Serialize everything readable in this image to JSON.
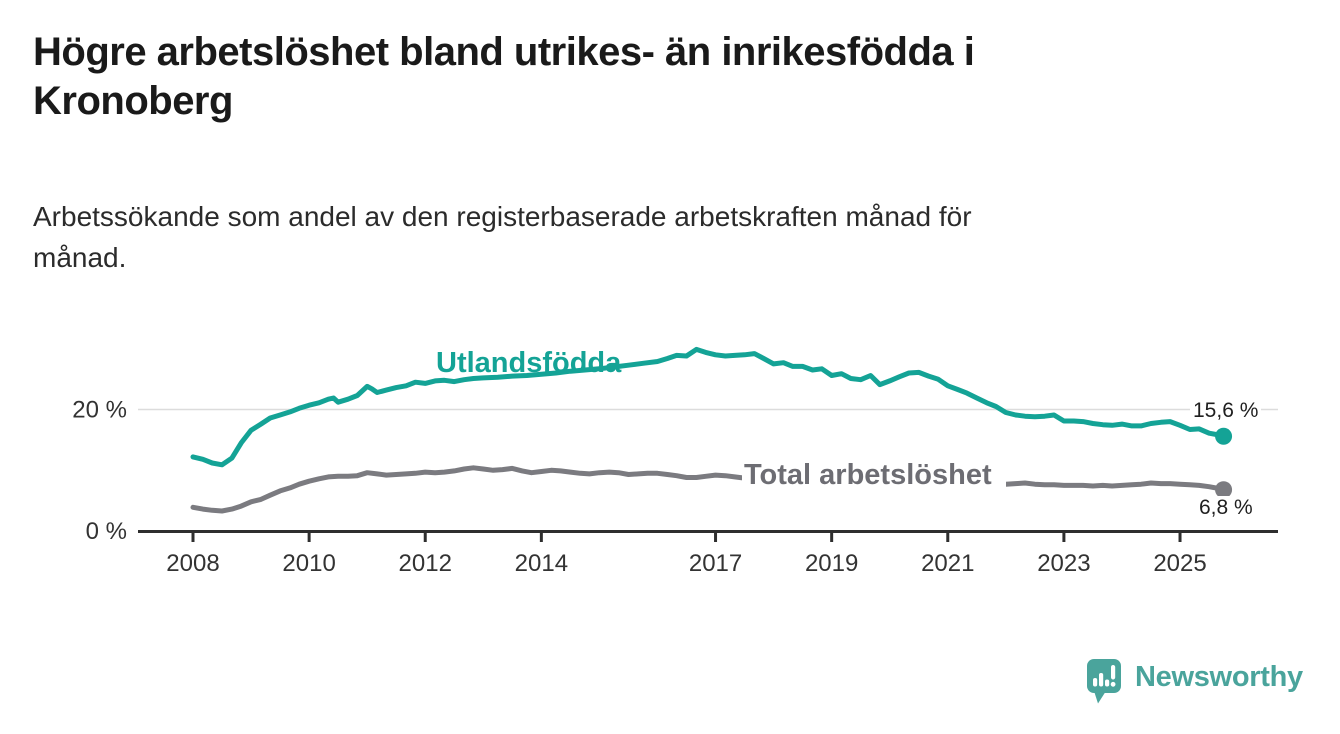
{
  "header": {
    "title": "Högre arbetslöshet bland utrikes- än inrikesfödda i Kronoberg",
    "title_lines": [
      "Högre arbetslöshet bland utrikes- än inrikesfödda i",
      "Kronoberg"
    ],
    "subtitle": "Arbetssökande som andel av den registerbaserade arbetskraften månad för månad.",
    "subtitle_lines": [
      "Arbetssökande som andel av den registerbaserade arbetskraften månad för",
      "månad."
    ]
  },
  "chart_data": {
    "type": "line",
    "title": "Högre arbetslöshet bland utrikes- än inrikesfödda i Kronoberg",
    "subtitle": "Arbetssökande som andel av den registerbaserade arbetskraften månad för månad.",
    "grid": "horizontal-only",
    "legend_position": "inline-labels-on-lines",
    "x_axis": {
      "range": [
        2007.6,
        2026.4
      ],
      "ticks": [
        {
          "value": 2008,
          "label": "2008"
        },
        {
          "value": 2010,
          "label": "2010"
        },
        {
          "value": 2012,
          "label": "2012"
        },
        {
          "value": 2014,
          "label": "2014"
        },
        {
          "value": 2017,
          "label": "2017"
        },
        {
          "value": 2019,
          "label": "2019"
        },
        {
          "value": 2021,
          "label": "2021"
        },
        {
          "value": 2023,
          "label": "2023"
        },
        {
          "value": 2025,
          "label": "2025"
        }
      ]
    },
    "y_axis": {
      "range": [
        0,
        33
      ],
      "unit": "%",
      "ticks": [
        {
          "value": 0,
          "label": "0 %"
        },
        {
          "value": 20,
          "label": "20 %"
        }
      ],
      "gridlines": [
        20
      ]
    },
    "series": [
      {
        "name": "Utlandsfödda",
        "color": "#14a396",
        "end_label": "15,6 %",
        "end_value": 15.6,
        "points": [
          [
            2008.0,
            12.2
          ],
          [
            2008.17,
            11.8
          ],
          [
            2008.33,
            11.2
          ],
          [
            2008.5,
            10.9
          ],
          [
            2008.67,
            12.0
          ],
          [
            2008.83,
            14.5
          ],
          [
            2009.0,
            16.6
          ],
          [
            2009.17,
            17.6
          ],
          [
            2009.33,
            18.6
          ],
          [
            2009.5,
            19.1
          ],
          [
            2009.67,
            19.6
          ],
          [
            2009.83,
            20.2
          ],
          [
            2010.0,
            20.7
          ],
          [
            2010.17,
            21.1
          ],
          [
            2010.33,
            21.7
          ],
          [
            2010.42,
            21.9
          ],
          [
            2010.5,
            21.2
          ],
          [
            2010.67,
            21.7
          ],
          [
            2010.83,
            22.3
          ],
          [
            2011.0,
            23.8
          ],
          [
            2011.08,
            23.4
          ],
          [
            2011.17,
            22.8
          ],
          [
            2011.33,
            23.2
          ],
          [
            2011.5,
            23.6
          ],
          [
            2011.67,
            23.9
          ],
          [
            2011.83,
            24.5
          ],
          [
            2012.0,
            24.3
          ],
          [
            2012.17,
            24.7
          ],
          [
            2012.33,
            24.8
          ],
          [
            2012.5,
            24.6
          ],
          [
            2012.67,
            24.9
          ],
          [
            2012.83,
            25.1
          ],
          [
            2013.0,
            25.2
          ],
          [
            2013.25,
            25.3
          ],
          [
            2013.5,
            25.5
          ],
          [
            2013.75,
            25.6
          ],
          [
            2014.0,
            25.8
          ],
          [
            2014.25,
            26.0
          ],
          [
            2014.5,
            26.3
          ],
          [
            2014.75,
            26.5
          ],
          [
            2015.0,
            26.7
          ],
          [
            2015.25,
            27.0
          ],
          [
            2015.5,
            27.3
          ],
          [
            2015.75,
            27.6
          ],
          [
            2016.0,
            27.9
          ],
          [
            2016.17,
            28.4
          ],
          [
            2016.33,
            28.9
          ],
          [
            2016.5,
            28.8
          ],
          [
            2016.67,
            29.9
          ],
          [
            2016.83,
            29.4
          ],
          [
            2017.0,
            29.0
          ],
          [
            2017.17,
            28.8
          ],
          [
            2017.33,
            28.9
          ],
          [
            2017.5,
            29.0
          ],
          [
            2017.67,
            29.2
          ],
          [
            2017.83,
            28.4
          ],
          [
            2018.0,
            27.5
          ],
          [
            2018.17,
            27.7
          ],
          [
            2018.33,
            27.1
          ],
          [
            2018.5,
            27.1
          ],
          [
            2018.67,
            26.5
          ],
          [
            2018.83,
            26.7
          ],
          [
            2019.0,
            25.6
          ],
          [
            2019.17,
            25.9
          ],
          [
            2019.33,
            25.1
          ],
          [
            2019.5,
            24.9
          ],
          [
            2019.67,
            25.6
          ],
          [
            2019.83,
            24.1
          ],
          [
            2020.0,
            24.7
          ],
          [
            2020.17,
            25.4
          ],
          [
            2020.33,
            26.0
          ],
          [
            2020.5,
            26.1
          ],
          [
            2020.67,
            25.5
          ],
          [
            2020.83,
            25.0
          ],
          [
            2021.0,
            23.9
          ],
          [
            2021.17,
            23.3
          ],
          [
            2021.33,
            22.7
          ],
          [
            2021.5,
            21.9
          ],
          [
            2021.67,
            21.1
          ],
          [
            2021.83,
            20.5
          ],
          [
            2022.0,
            19.5
          ],
          [
            2022.17,
            19.1
          ],
          [
            2022.33,
            18.9
          ],
          [
            2022.5,
            18.8
          ],
          [
            2022.67,
            18.9
          ],
          [
            2022.83,
            19.1
          ],
          [
            2023.0,
            18.1
          ],
          [
            2023.17,
            18.1
          ],
          [
            2023.33,
            18.0
          ],
          [
            2023.5,
            17.7
          ],
          [
            2023.67,
            17.5
          ],
          [
            2023.83,
            17.4
          ],
          [
            2024.0,
            17.6
          ],
          [
            2024.17,
            17.3
          ],
          [
            2024.33,
            17.3
          ],
          [
            2024.5,
            17.7
          ],
          [
            2024.67,
            17.9
          ],
          [
            2024.83,
            18.0
          ],
          [
            2025.0,
            17.4
          ],
          [
            2025.17,
            16.7
          ],
          [
            2025.33,
            16.8
          ],
          [
            2025.5,
            16.1
          ],
          [
            2025.67,
            15.8
          ],
          [
            2025.75,
            15.6
          ]
        ]
      },
      {
        "name": "Total arbetslöshet",
        "color": "#7b7b80",
        "end_label": "6,8 %",
        "end_value": 6.8,
        "points": [
          [
            2008.0,
            3.9
          ],
          [
            2008.17,
            3.6
          ],
          [
            2008.33,
            3.4
          ],
          [
            2008.5,
            3.3
          ],
          [
            2008.67,
            3.6
          ],
          [
            2008.83,
            4.1
          ],
          [
            2009.0,
            4.8
          ],
          [
            2009.17,
            5.2
          ],
          [
            2009.33,
            5.9
          ],
          [
            2009.5,
            6.6
          ],
          [
            2009.67,
            7.1
          ],
          [
            2009.83,
            7.7
          ],
          [
            2010.0,
            8.2
          ],
          [
            2010.17,
            8.6
          ],
          [
            2010.33,
            8.9
          ],
          [
            2010.5,
            9.0
          ],
          [
            2010.67,
            9.0
          ],
          [
            2010.83,
            9.1
          ],
          [
            2011.0,
            9.6
          ],
          [
            2011.17,
            9.4
          ],
          [
            2011.33,
            9.2
          ],
          [
            2011.5,
            9.3
          ],
          [
            2011.67,
            9.4
          ],
          [
            2011.83,
            9.5
          ],
          [
            2012.0,
            9.7
          ],
          [
            2012.17,
            9.6
          ],
          [
            2012.33,
            9.7
          ],
          [
            2012.5,
            9.9
          ],
          [
            2012.67,
            10.2
          ],
          [
            2012.83,
            10.4
          ],
          [
            2013.0,
            10.2
          ],
          [
            2013.17,
            10.0
          ],
          [
            2013.33,
            10.1
          ],
          [
            2013.5,
            10.3
          ],
          [
            2013.67,
            9.9
          ],
          [
            2013.83,
            9.6
          ],
          [
            2014.0,
            9.8
          ],
          [
            2014.17,
            10.0
          ],
          [
            2014.33,
            9.9
          ],
          [
            2014.5,
            9.7
          ],
          [
            2014.67,
            9.5
          ],
          [
            2014.83,
            9.4
          ],
          [
            2015.0,
            9.6
          ],
          [
            2015.17,
            9.7
          ],
          [
            2015.33,
            9.6
          ],
          [
            2015.5,
            9.3
          ],
          [
            2015.67,
            9.4
          ],
          [
            2015.83,
            9.5
          ],
          [
            2016.0,
            9.5
          ],
          [
            2016.17,
            9.3
          ],
          [
            2016.33,
            9.1
          ],
          [
            2016.5,
            8.8
          ],
          [
            2016.67,
            8.8
          ],
          [
            2016.83,
            9.0
          ],
          [
            2017.0,
            9.2
          ],
          [
            2017.17,
            9.1
          ],
          [
            2017.33,
            8.9
          ],
          [
            2017.5,
            8.7
          ],
          [
            2017.67,
            8.6
          ],
          [
            2017.83,
            8.5
          ],
          [
            2018.0,
            8.4
          ],
          [
            2018.25,
            8.3
          ],
          [
            2018.5,
            8.2
          ],
          [
            2018.75,
            8.1
          ],
          [
            2019.0,
            8.0
          ],
          [
            2019.25,
            8.0
          ],
          [
            2019.5,
            7.9
          ],
          [
            2019.75,
            7.9
          ],
          [
            2020.0,
            8.0
          ],
          [
            2020.25,
            8.4
          ],
          [
            2020.5,
            8.6
          ],
          [
            2020.75,
            8.5
          ],
          [
            2021.0,
            8.3
          ],
          [
            2021.25,
            8.1
          ],
          [
            2021.5,
            7.9
          ],
          [
            2021.75,
            7.8
          ],
          [
            2022.0,
            7.7
          ],
          [
            2022.17,
            7.8
          ],
          [
            2022.33,
            7.9
          ],
          [
            2022.5,
            7.7
          ],
          [
            2022.67,
            7.6
          ],
          [
            2022.83,
            7.6
          ],
          [
            2023.0,
            7.5
          ],
          [
            2023.17,
            7.5
          ],
          [
            2023.33,
            7.5
          ],
          [
            2023.5,
            7.4
          ],
          [
            2023.67,
            7.5
          ],
          [
            2023.83,
            7.4
          ],
          [
            2024.0,
            7.5
          ],
          [
            2024.17,
            7.6
          ],
          [
            2024.33,
            7.7
          ],
          [
            2024.5,
            7.9
          ],
          [
            2024.67,
            7.8
          ],
          [
            2024.83,
            7.8
          ],
          [
            2025.0,
            7.7
          ],
          [
            2025.17,
            7.6
          ],
          [
            2025.33,
            7.5
          ],
          [
            2025.5,
            7.3
          ],
          [
            2025.67,
            7.0
          ],
          [
            2025.75,
            6.8
          ]
        ]
      }
    ],
    "colors": {
      "utlandsfodda_line": "#14a396",
      "total_line": "#7b7b80",
      "gridline": "#dcdcdc",
      "axis_line": "#2e2e2e",
      "axis_text": "#333333",
      "title_text": "#1a1a1a"
    }
  },
  "logo": {
    "text": "Newsworthy",
    "color": "#4aa49c",
    "icon": "newsworthy-speech-bubble-chart-icon"
  }
}
